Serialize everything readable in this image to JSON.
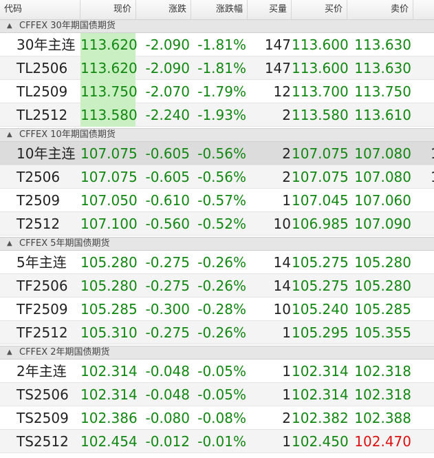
{
  "headers": {
    "code": "代码",
    "price": "现价",
    "change": "涨跌",
    "change_pct": "涨跌幅",
    "volume": "买量",
    "bid": "买价",
    "ask": "卖价"
  },
  "colors": {
    "down": "#118811",
    "up": "#dd1111",
    "highlight": "#c9efc2"
  },
  "groups": [
    {
      "title": "CFFEX 30年期国债期货",
      "rows": [
        {
          "code": "30年主连",
          "price": "113.620",
          "change": "-2.090",
          "change_pct": "-1.81%",
          "volume": "147",
          "bid": "113.600",
          "ask": "113.630",
          "price_highlight": true
        },
        {
          "code": "TL2506",
          "price": "113.620",
          "change": "-2.090",
          "change_pct": "-1.81%",
          "volume": "147",
          "bid": "113.600",
          "ask": "113.630",
          "price_highlight": true
        },
        {
          "code": "TL2509",
          "price": "113.750",
          "change": "-2.070",
          "change_pct": "-1.79%",
          "volume": "12",
          "bid": "113.700",
          "ask": "113.750",
          "price_highlight": true
        },
        {
          "code": "TL2512",
          "price": "113.580",
          "change": "-2.240",
          "change_pct": "-1.93%",
          "volume": "2",
          "bid": "113.580",
          "ask": "113.610",
          "price_highlight": true
        }
      ]
    },
    {
      "title": "CFFEX 10年期国债期货",
      "rows": [
        {
          "code": "10年主连",
          "price": "107.075",
          "change": "-0.605",
          "change_pct": "-0.56%",
          "volume": "2",
          "bid": "107.075",
          "ask": "107.080",
          "selected": true,
          "more": "1"
        },
        {
          "code": "T2506",
          "price": "107.075",
          "change": "-0.605",
          "change_pct": "-0.56%",
          "volume": "2",
          "bid": "107.075",
          "ask": "107.080",
          "more": "1"
        },
        {
          "code": "T2509",
          "price": "107.050",
          "change": "-0.610",
          "change_pct": "-0.57%",
          "volume": "1",
          "bid": "107.045",
          "ask": "107.060"
        },
        {
          "code": "T2512",
          "price": "107.100",
          "change": "-0.560",
          "change_pct": "-0.52%",
          "volume": "10",
          "bid": "106.985",
          "ask": "107.090"
        }
      ]
    },
    {
      "title": "CFFEX 5年期国债期货",
      "rows": [
        {
          "code": "5年主连",
          "price": "105.280",
          "change": "-0.275",
          "change_pct": "-0.26%",
          "volume": "14",
          "bid": "105.275",
          "ask": "105.280"
        },
        {
          "code": "TF2506",
          "price": "105.280",
          "change": "-0.275",
          "change_pct": "-0.26%",
          "volume": "14",
          "bid": "105.275",
          "ask": "105.280"
        },
        {
          "code": "TF2509",
          "price": "105.285",
          "change": "-0.300",
          "change_pct": "-0.28%",
          "volume": "10",
          "bid": "105.240",
          "ask": "105.285"
        },
        {
          "code": "TF2512",
          "price": "105.310",
          "change": "-0.275",
          "change_pct": "-0.26%",
          "volume": "1",
          "bid": "105.295",
          "ask": "105.355"
        }
      ]
    },
    {
      "title": "CFFEX 2年期国债期货",
      "rows": [
        {
          "code": "2年主连",
          "price": "102.314",
          "change": "-0.048",
          "change_pct": "-0.05%",
          "volume": "1",
          "bid": "102.314",
          "ask": "102.318"
        },
        {
          "code": "TS2506",
          "price": "102.314",
          "change": "-0.048",
          "change_pct": "-0.05%",
          "volume": "1",
          "bid": "102.314",
          "ask": "102.318"
        },
        {
          "code": "TS2509",
          "price": "102.386",
          "change": "-0.080",
          "change_pct": "-0.08%",
          "volume": "2",
          "bid": "102.382",
          "ask": "102.388"
        },
        {
          "code": "TS2512",
          "price": "102.454",
          "change": "-0.012",
          "change_pct": "-0.01%",
          "volume": "1",
          "bid": "102.450",
          "ask": "102.470",
          "ask_up": true
        }
      ]
    }
  ]
}
